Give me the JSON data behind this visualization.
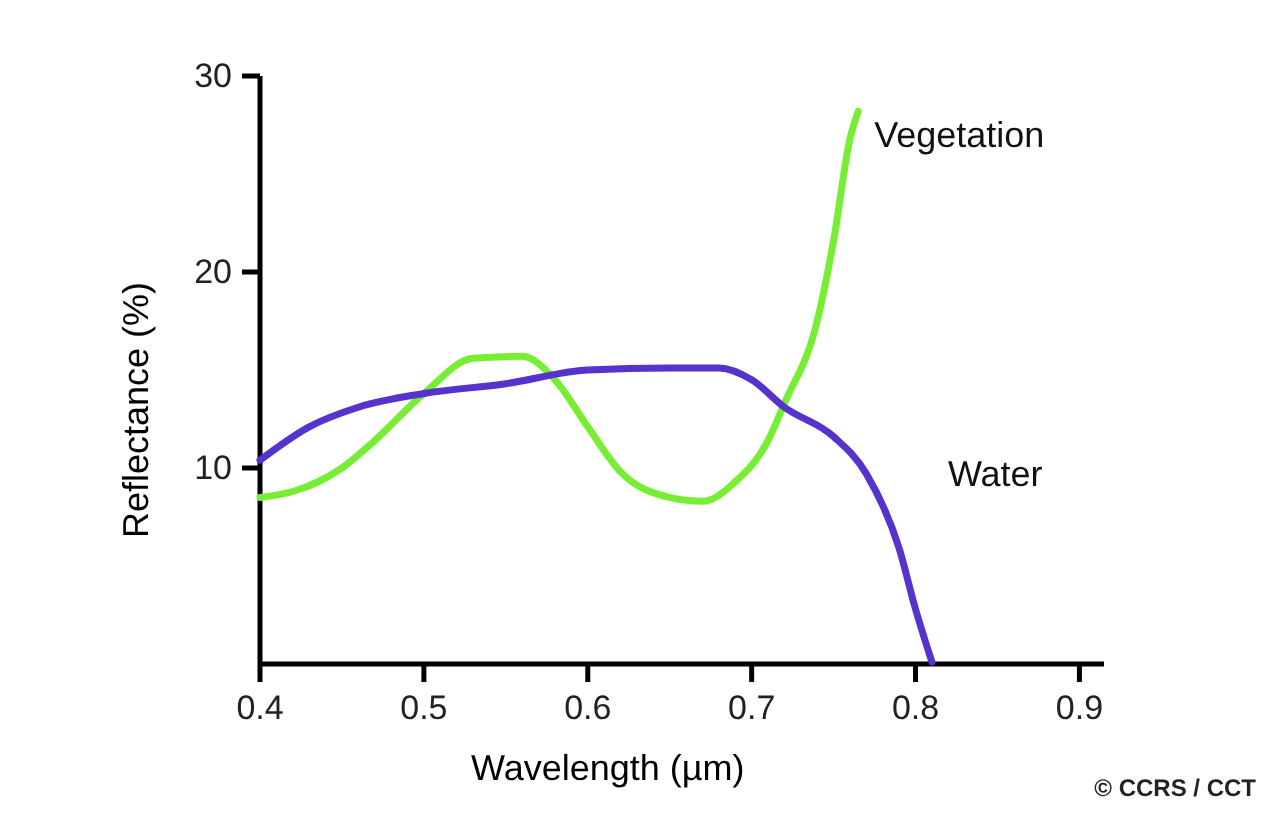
{
  "chart_data": {
    "type": "line",
    "xlabel": "Wavelength (µm)",
    "ylabel": "Reflectance (%)",
    "xlim": [
      0.4,
      0.915
    ],
    "xticks": [
      {
        "value": 0.4,
        "label": "0.4"
      },
      {
        "value": 0.5,
        "label": "0.5"
      },
      {
        "value": 0.6,
        "label": "0.6"
      },
      {
        "value": 0.7,
        "label": "0.7"
      },
      {
        "value": 0.8,
        "label": "0.8"
      },
      {
        "value": 0.9,
        "label": "0.9"
      }
    ],
    "ylim": [
      0,
      30
    ],
    "yticks": [
      10,
      20,
      30
    ],
    "grid": false,
    "legend": false,
    "marker": "none",
    "line_style": "solid",
    "annotations": [
      "© CCRS / CCT"
    ],
    "series": [
      {
        "name": "Vegetation",
        "color": "#77ee33",
        "x": [
          0.4,
          0.42,
          0.45,
          0.47,
          0.5,
          0.53,
          0.56,
          0.58,
          0.6,
          0.62,
          0.65,
          0.67,
          0.69,
          0.71,
          0.72,
          0.74,
          0.75,
          0.76,
          0.765
        ],
        "values": [
          8.5,
          8.8,
          10.0,
          11.4,
          13.8,
          15.6,
          15.7,
          14.5,
          12.1,
          9.8,
          8.5,
          8.3,
          9.3,
          11.4,
          13.3,
          17.5,
          21.6,
          26.8,
          28.2
        ]
      },
      {
        "name": "Water",
        "color": "#5533cc",
        "x": [
          0.4,
          0.43,
          0.46,
          0.5,
          0.55,
          0.6,
          0.65,
          0.68,
          0.7,
          0.72,
          0.75,
          0.77,
          0.79,
          0.8,
          0.81
        ],
        "values": [
          10.4,
          12.1,
          13.1,
          13.8,
          14.3,
          15.0,
          15.1,
          15.1,
          14.5,
          13.1,
          11.6,
          9.7,
          5.9,
          2.8,
          0.1
        ]
      }
    ]
  }
}
